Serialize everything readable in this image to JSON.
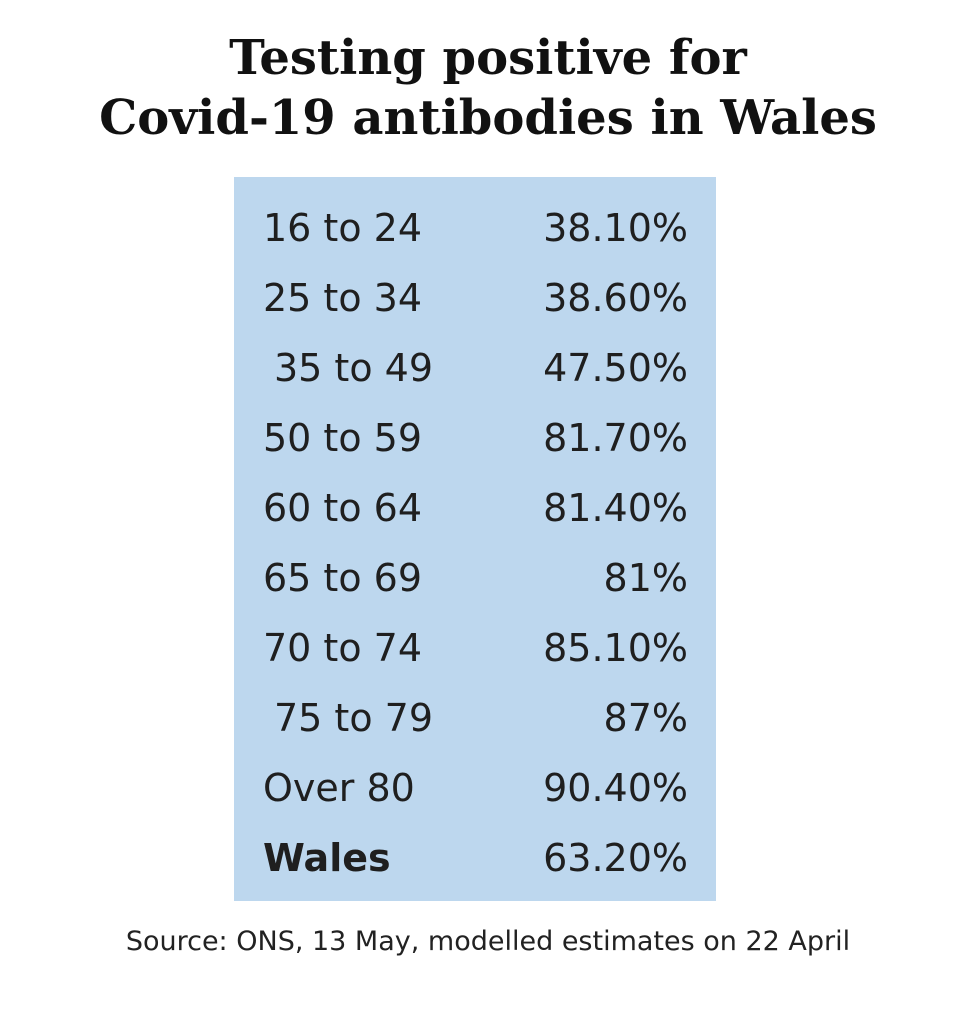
{
  "title_line1": "Testing positive for",
  "title_line2": "Covid-19 antibodies in Wales",
  "source": "Source: ONS, 13 May, modelled estimates on 22 April",
  "colors": {
    "table_background": "#bdd7ee",
    "text": "#1f1f1f"
  },
  "chart_data": {
    "type": "table",
    "title": "Testing positive for Covid-19 antibodies in Wales",
    "rows": [
      {
        "label": "16 to 24",
        "value": "38.10%",
        "numeric": 38.1
      },
      {
        "label": "25 to 34",
        "value": "38.60%",
        "numeric": 38.6
      },
      {
        "label": "35 to 49",
        "value": "47.50%",
        "numeric": 47.5
      },
      {
        "label": "50 to 59",
        "value": "81.70%",
        "numeric": 81.7
      },
      {
        "label": "60 to 64",
        "value": "81.40%",
        "numeric": 81.4
      },
      {
        "label": "65 to 69",
        "value": "81%",
        "numeric": 81
      },
      {
        "label": "70 to 74",
        "value": "85.10%",
        "numeric": 85.1
      },
      {
        "label": "75 to 79",
        "value": "87%",
        "numeric": 87
      },
      {
        "label": "Over 80",
        "value": "90.40%",
        "numeric": 90.4
      },
      {
        "label": "Wales",
        "value": "63.20%",
        "numeric": 63.2
      }
    ]
  }
}
